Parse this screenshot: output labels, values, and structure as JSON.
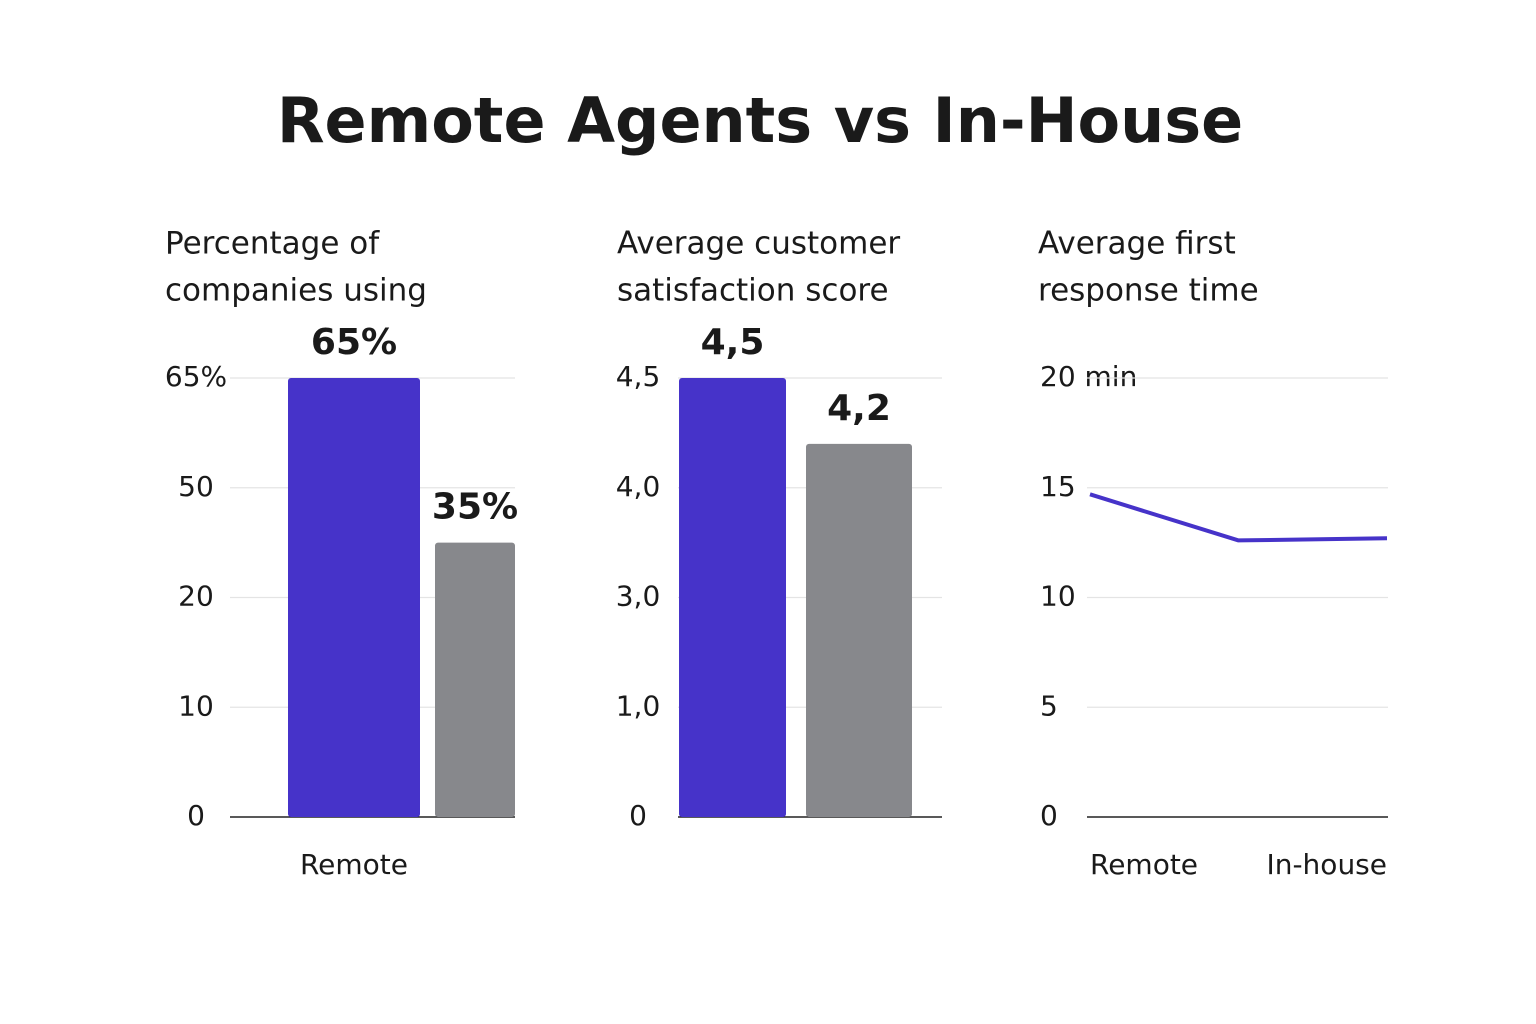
{
  "title": "Remote Agents vs In-House",
  "chart_data": [
    {
      "type": "bar",
      "title": [
        "Percentage of",
        "companies using"
      ],
      "categories": [
        "Remote",
        null
      ],
      "values": [
        65,
        35
      ],
      "value_labels": [
        "65%",
        "35%"
      ],
      "colors": [
        "#4633c9",
        "#87888c"
      ],
      "label_colors": [
        "#3d2fc4",
        "#5f6064"
      ],
      "ylim": [
        0,
        65
      ],
      "yticks": [
        0,
        10,
        20,
        50,
        {
          "value": 65,
          "label": "65%"
        }
      ],
      "grid": true
    },
    {
      "type": "bar",
      "title": [
        "Average customer",
        "satisfaction score"
      ],
      "categories": [
        null,
        null
      ],
      "values": [
        4.5,
        4.2
      ],
      "value_labels": [
        "4,5",
        "4,2"
      ],
      "colors": [
        "#4633c9",
        "#87888c"
      ],
      "label_colors": [
        "#3d2fc4",
        "#5f6064"
      ],
      "ylim": [
        0,
        4.5
      ],
      "yticks": [
        0,
        {
          "value": 1,
          "label": "1,0"
        },
        {
          "value": 3,
          "label": "3,0"
        },
        {
          "value": 4,
          "label": "4,0"
        },
        {
          "value": 4.5,
          "label": "4,5"
        }
      ],
      "grid": true
    },
    {
      "type": "line",
      "title": [
        "Average first",
        "response time"
      ],
      "categories": [
        "Remote",
        null,
        "In-house"
      ],
      "series": [
        {
          "color": "#4633c9",
          "values": [
            14.7,
            12.6,
            12.7
          ]
        }
      ],
      "ylim": [
        0,
        20
      ],
      "yticks": [
        0,
        5,
        10,
        15,
        {
          "value": 20,
          "label": "20 min"
        }
      ],
      "grid": true
    }
  ]
}
